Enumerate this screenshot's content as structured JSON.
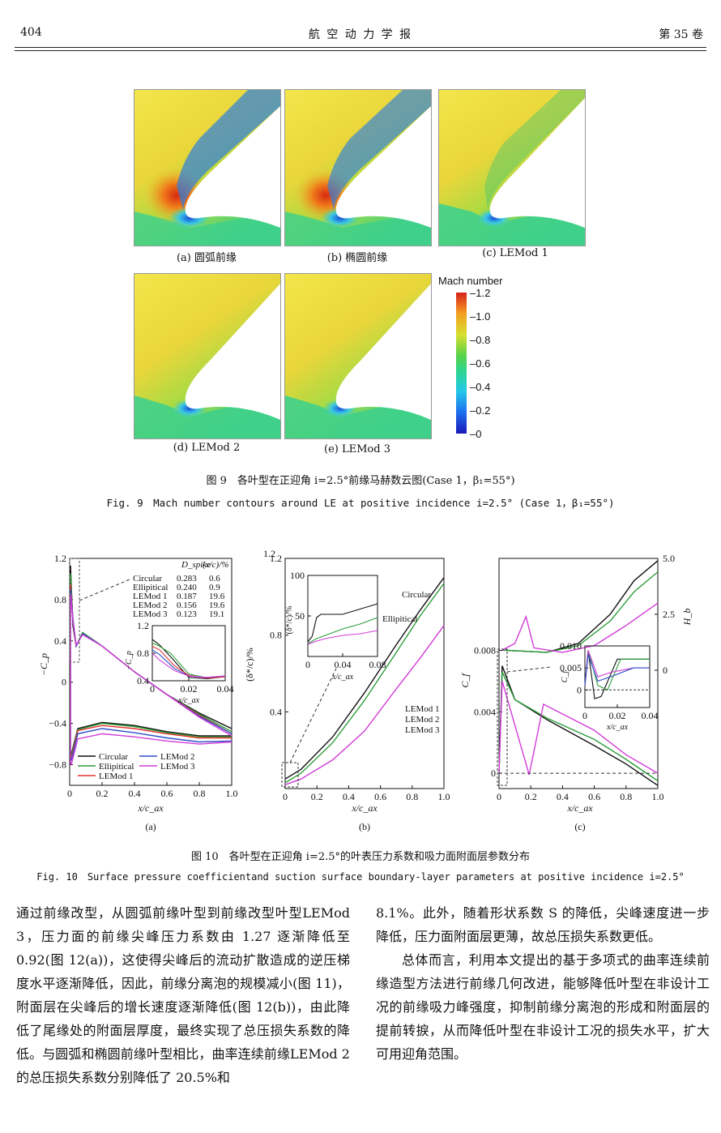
{
  "header": {
    "page_number": "404",
    "journal": "航 空 动 力 学 报",
    "volume": "第 35 卷"
  },
  "fig9": {
    "panels": [
      "(a) 圆弧前缘",
      "(b) 椭圆前缘",
      "(c) LEMod 1",
      "(d) LEMod 2",
      "(e) LEMod 3"
    ],
    "colorbar": {
      "title": "Mach number",
      "ticks": [
        "1.2",
        "1.0",
        "0.8",
        "0.6",
        "0.4",
        "0.2",
        "0"
      ]
    },
    "caption_cn": "图 9　各叶型在正迎角 i=2.5°前缘马赫数云图(Case 1，β₁=55°)",
    "caption_en": "Fig. 9　Mach number contours around LE at positive incidence i=2.5° (Case 1，β₁=55°)"
  },
  "fig10": {
    "caption_cn": "图 10　各叶型在正迎角 i=2.5°的叶表压力系数和吸力面附面层参数分布",
    "caption_en": "Fig. 10　Surface pressure coefficientand suction surface boundary-layer parameters at positive incidence i=2.5°"
  },
  "chart_data": [
    {
      "type": "line",
      "panel_label": "(a)",
      "xlabel": "x/c_ax",
      "ylabel": "−C_p",
      "xlim": [
        0,
        1.0
      ],
      "ylim": [
        -1.0,
        1.2
      ],
      "x_ticks": [
        "0",
        "0.2",
        "0.4",
        "0.6",
        "0.8",
        "1.0"
      ],
      "y_ticks": [
        "1.2",
        "0.8",
        "0.4",
        "0",
        "−0.4",
        "−0.8"
      ],
      "legend": [
        "Circular",
        "Ellipitical",
        "LEMod 1",
        "LEMod 2",
        "LEMod 3"
      ],
      "table": {
        "headers": [
          "",
          "D_spike",
          "(x/c)/%"
        ],
        "rows": [
          [
            "Circular",
            "0.283",
            "0.6"
          ],
          [
            "Ellipitical",
            "0.240",
            "0.9"
          ],
          [
            "LEMod 1",
            "0.187",
            "19.6"
          ],
          [
            "LEMod 2",
            "0.156",
            "19.6"
          ],
          [
            "LEMod 3",
            "0.123",
            "19.1"
          ]
        ]
      },
      "series": [
        {
          "name": "Circular",
          "color": "#111111",
          "suction": [
            [
              0.005,
              1.13
            ],
            [
              0.02,
              0.55
            ],
            [
              0.04,
              0.35
            ],
            [
              0.08,
              0.48
            ],
            [
              0.2,
              0.35
            ],
            [
              0.4,
              0.1
            ],
            [
              0.6,
              -0.12
            ],
            [
              0.8,
              -0.3
            ],
            [
              1.0,
              -0.45
            ]
          ],
          "pressure": [
            [
              0.01,
              -0.7
            ],
            [
              0.05,
              -0.45
            ],
            [
              0.2,
              -0.39
            ],
            [
              0.4,
              -0.42
            ],
            [
              0.6,
              -0.48
            ],
            [
              0.8,
              -0.52
            ],
            [
              1.0,
              -0.52
            ]
          ]
        },
        {
          "name": "Ellipitical",
          "color": "#2e9e3a",
          "suction": [
            [
              0.005,
              1.05
            ],
            [
              0.02,
              0.6
            ],
            [
              0.04,
              0.35
            ],
            [
              0.08,
              0.48
            ],
            [
              0.2,
              0.35
            ],
            [
              0.4,
              0.1
            ],
            [
              0.6,
              -0.12
            ],
            [
              0.8,
              -0.31
            ],
            [
              1.0,
              -0.48
            ]
          ],
          "pressure": [
            [
              0.01,
              -0.72
            ],
            [
              0.05,
              -0.46
            ],
            [
              0.2,
              -0.4
            ],
            [
              0.4,
              -0.43
            ],
            [
              0.6,
              -0.49
            ],
            [
              0.8,
              -0.53
            ],
            [
              1.0,
              -0.53
            ]
          ]
        },
        {
          "name": "LEMod 1",
          "color": "#e53333",
          "suction": [
            [
              0.005,
              0.95
            ],
            [
              0.02,
              0.62
            ],
            [
              0.04,
              0.35
            ],
            [
              0.08,
              0.47
            ],
            [
              0.2,
              0.35
            ],
            [
              0.4,
              0.1
            ],
            [
              0.6,
              -0.12
            ],
            [
              0.8,
              -0.32
            ],
            [
              1.0,
              -0.5
            ]
          ],
          "pressure": [
            [
              0.01,
              -0.74
            ],
            [
              0.05,
              -0.47
            ],
            [
              0.2,
              -0.42
            ],
            [
              0.4,
              -0.45
            ],
            [
              0.6,
              -0.5
            ],
            [
              0.8,
              -0.54
            ],
            [
              1.0,
              -0.54
            ]
          ]
        },
        {
          "name": "LEMod 2",
          "color": "#2e4fc8",
          "suction": [
            [
              0.005,
              0.9
            ],
            [
              0.02,
              0.62
            ],
            [
              0.04,
              0.35
            ],
            [
              0.08,
              0.47
            ],
            [
              0.2,
              0.35
            ],
            [
              0.4,
              0.1
            ],
            [
              0.6,
              -0.12
            ],
            [
              0.8,
              -0.33
            ],
            [
              1.0,
              -0.5
            ]
          ],
          "pressure": [
            [
              0.01,
              -0.76
            ],
            [
              0.05,
              -0.5
            ],
            [
              0.2,
              -0.45
            ],
            [
              0.4,
              -0.49
            ],
            [
              0.6,
              -0.54
            ],
            [
              0.8,
              -0.58
            ],
            [
              1.0,
              -0.57
            ]
          ]
        },
        {
          "name": "LEMod 3",
          "color": "#d23cd8",
          "suction": [
            [
              0.005,
              0.85
            ],
            [
              0.02,
              0.6
            ],
            [
              0.04,
              0.36
            ],
            [
              0.08,
              0.46
            ],
            [
              0.2,
              0.35
            ],
            [
              0.4,
              0.1
            ],
            [
              0.6,
              -0.12
            ],
            [
              0.8,
              -0.34
            ],
            [
              1.0,
              -0.52
            ]
          ],
          "pressure": [
            [
              0.01,
              -0.8
            ],
            [
              0.05,
              -0.55
            ],
            [
              0.2,
              -0.5
            ],
            [
              0.4,
              -0.53
            ],
            [
              0.6,
              -0.57
            ],
            [
              0.8,
              -0.6
            ],
            [
              1.0,
              -0.58
            ]
          ]
        }
      ],
      "inset": {
        "ylabel": "−C_p",
        "xlabel": "x/c_ax",
        "ylim": [
          0.4,
          1.2
        ],
        "xlim": [
          0,
          0.04
        ],
        "y_ticks": [
          "1.2",
          "0.8",
          "0.4"
        ],
        "x_ticks": [
          "0",
          "0.02",
          "0.04"
        ]
      }
    },
    {
      "type": "line",
      "panel_label": "(b)",
      "xlabel": "x/c_ax",
      "ylabel": "(δ*/c)/%",
      "xlim": [
        0,
        1.0
      ],
      "ylim": [
        0,
        1.2
      ],
      "x_ticks": [
        "0",
        "0.2",
        "0.4",
        "0.6",
        "0.8",
        "1.0"
      ],
      "y_ticks": [
        "1.2",
        "0.8",
        "0.4"
      ],
      "annotations": [
        "Circular",
        "Ellipitical",
        "LEMod 1",
        "LEMod 2",
        "LEMod 3"
      ],
      "series": [
        {
          "name": "Circular",
          "color": "#111111",
          "points": [
            [
              0,
              0.05
            ],
            [
              0.1,
              0.1
            ],
            [
              0.3,
              0.27
            ],
            [
              0.5,
              0.5
            ],
            [
              0.7,
              0.75
            ],
            [
              0.85,
              0.93
            ],
            [
              1.0,
              1.1
            ]
          ]
        },
        {
          "name": "Ellipitical",
          "color": "#2e9e3a",
          "points": [
            [
              0,
              0.03
            ],
            [
              0.1,
              0.08
            ],
            [
              0.3,
              0.24
            ],
            [
              0.5,
              0.46
            ],
            [
              0.7,
              0.71
            ],
            [
              0.85,
              0.9
            ],
            [
              1.0,
              1.07
            ]
          ]
        },
        {
          "name": "LEMod",
          "color": "#d23cd8",
          "points": [
            [
              0,
              0.02
            ],
            [
              0.1,
              0.05
            ],
            [
              0.3,
              0.15
            ],
            [
              0.5,
              0.3
            ],
            [
              0.7,
              0.52
            ],
            [
              0.85,
              0.68
            ],
            [
              1.0,
              0.85
            ]
          ]
        }
      ],
      "inset": {
        "ylabel": "(δ*/c)/%",
        "xlabel": "x/c_ax",
        "ylim": [
          0,
          100
        ],
        "xlim": [
          0,
          0.08
        ],
        "y_ticks": [
          "100",
          "50"
        ],
        "x_ticks": [
          "0",
          "0.04",
          "0.08"
        ]
      }
    },
    {
      "type": "line",
      "panel_label": "(c)",
      "xlabel": "x/c_ax",
      "ylabel": "C_f",
      "y2label": "H_b",
      "xlim": [
        0,
        1.0
      ],
      "ylim": [
        -0.001,
        0.014
      ],
      "x_ticks": [
        "0",
        "0.2",
        "0.4",
        "0.6",
        "0.8",
        "1.0"
      ],
      "y_ticks": [
        "0.008",
        "0.004",
        "0"
      ],
      "y2_ticks": [
        "5.0",
        "2.5",
        "0"
      ],
      "series_cf": [
        {
          "name": "Circular",
          "color": "#111111",
          "points": [
            [
              0.0,
              0.0
            ],
            [
              0.02,
              0.007
            ],
            [
              0.1,
              0.0048
            ],
            [
              0.3,
              0.0035
            ],
            [
              0.6,
              0.0018
            ],
            [
              0.8,
              0.0006
            ],
            [
              1.0,
              -0.0008
            ]
          ]
        },
        {
          "name": "Ellipitical",
          "color": "#2e9e3a",
          "points": [
            [
              0.0,
              0.0
            ],
            [
              0.02,
              0.0066
            ],
            [
              0.1,
              0.0048
            ],
            [
              0.3,
              0.0036
            ],
            [
              0.6,
              0.0022
            ],
            [
              0.8,
              0.0009
            ],
            [
              1.0,
              -0.0005
            ]
          ]
        },
        {
          "name": "LEMod",
          "color": "#d23cd8",
          "points": [
            [
              0.0,
              0.0
            ],
            [
              0.02,
              0.006
            ],
            [
              0.19,
              -0.0001
            ],
            [
              0.28,
              0.0045
            ],
            [
              0.6,
              0.0028
            ],
            [
              0.8,
              0.0012
            ],
            [
              1.0,
              0.0
            ]
          ]
        }
      ],
      "series_hb": [
        {
          "name": "Circular",
          "color": "#111111",
          "points": [
            [
              0.02,
              0.9
            ],
            [
              0.3,
              0.8
            ],
            [
              0.5,
              1.2
            ],
            [
              0.7,
              2.5
            ],
            [
              0.85,
              4.0
            ],
            [
              1.0,
              4.9
            ]
          ]
        },
        {
          "name": "Ellipitical",
          "color": "#2e9e3a",
          "points": [
            [
              0.02,
              0.9
            ],
            [
              0.3,
              0.8
            ],
            [
              0.5,
              1.1
            ],
            [
              0.7,
              2.2
            ],
            [
              0.85,
              3.5
            ],
            [
              1.0,
              4.4
            ]
          ]
        },
        {
          "name": "LEMod",
          "color": "#d23cd8",
          "points": [
            [
              0.02,
              0.9
            ],
            [
              0.1,
              1.2
            ],
            [
              0.17,
              2.4
            ],
            [
              0.22,
              1.0
            ],
            [
              0.4,
              0.8
            ],
            [
              0.6,
              1.1
            ],
            [
              0.8,
              2.0
            ],
            [
              1.0,
              3.0
            ]
          ]
        }
      ],
      "inset": {
        "ylabel": "C_f",
        "xlabel": "x/c_ax",
        "y_ticks": [
          "0.010",
          "0.005",
          "0"
        ],
        "x_ticks": [
          "0",
          "0.02",
          "0.04"
        ]
      }
    }
  ],
  "body": {
    "left": "通过前缘改型，从圆弧前缘叶型到前缘改型叶型LEMod 3，压力面的前缘尖峰压力系数由 1.27 逐渐降低至 0.92(图 12(a))，这使得尖峰后的流动扩散造成的逆压梯度水平逐渐降低，因此，前缘分离泡的规模减小(图 11)，附面层在尖峰后的增长速度逐渐降低(图 12(b))，由此降低了尾缘处的附面层厚度，最终实现了总压损失系数的降低。与圆弧和椭圆前缘叶型相比，曲率连续前缘LEMod 2 的总压损失系数分别降低了 20.5%和",
    "right_p1": "8.1%。此外，随着形状系数 S 的降低，尖峰速度进一步降低，压力面附面层更薄，故总压损失系数更低。",
    "right_p2": "总体而言，利用本文提出的基于多项式的曲率连续前缘造型方法进行前缘几何改进，能够降低叶型在非设计工况的前缘吸力峰强度，抑制前缘分离泡的形成和附面层的提前转捩，从而降低叶型在非设计工况的损失水平，扩大可用迎角范围。"
  }
}
